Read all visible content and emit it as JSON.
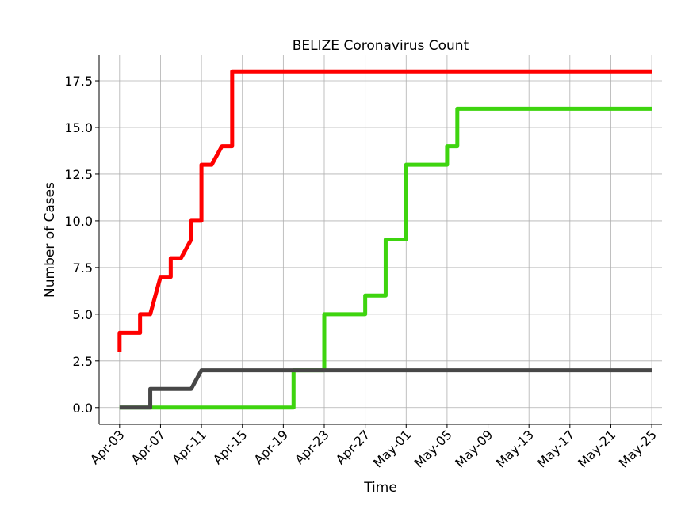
{
  "chart_data": {
    "type": "line",
    "title": "BELIZE Coronavirus Count",
    "xlabel": "Time",
    "ylabel": "Number of Cases",
    "x_range": [
      "2020-04-01",
      "2020-05-26"
    ],
    "ylim": [
      -0.9,
      18.9
    ],
    "x_ticks": [
      "2020-04-03",
      "2020-04-07",
      "2020-04-11",
      "2020-04-15",
      "2020-04-19",
      "2020-04-23",
      "2020-04-27",
      "2020-05-01",
      "2020-05-05",
      "2020-05-09",
      "2020-05-13",
      "2020-05-17",
      "2020-05-21",
      "2020-05-25"
    ],
    "x_tick_labels": [
      "Apr-03",
      "Apr-07",
      "Apr-11",
      "Apr-15",
      "Apr-19",
      "Apr-23",
      "Apr-27",
      "May-01",
      "May-05",
      "May-09",
      "May-13",
      "May-17",
      "May-21",
      "May-25"
    ],
    "y_ticks": [
      0,
      2.5,
      5,
      7.5,
      10,
      12.5,
      15,
      17.5
    ],
    "y_tick_labels": [
      "0.0",
      "2.5",
      "5.0",
      "7.5",
      "10.0",
      "12.5",
      "15.0",
      "17.5"
    ],
    "grid": true,
    "series": [
      {
        "color": "#ff0000",
        "points": [
          [
            "2020-04-03",
            3
          ],
          [
            "2020-04-03",
            4
          ],
          [
            "2020-04-05",
            4
          ],
          [
            "2020-04-05",
            5
          ],
          [
            "2020-04-06",
            5
          ],
          [
            "2020-04-07",
            7
          ],
          [
            "2020-04-08",
            7
          ],
          [
            "2020-04-08",
            8
          ],
          [
            "2020-04-09",
            8
          ],
          [
            "2020-04-10",
            9
          ],
          [
            "2020-04-10",
            10
          ],
          [
            "2020-04-11",
            10
          ],
          [
            "2020-04-11",
            13
          ],
          [
            "2020-04-12",
            13
          ],
          [
            "2020-04-13",
            14
          ],
          [
            "2020-04-14",
            14
          ],
          [
            "2020-04-14",
            18
          ],
          [
            "2020-05-25",
            18
          ]
        ]
      },
      {
        "color": "#3ed40f",
        "points": [
          [
            "2020-04-03",
            0
          ],
          [
            "2020-04-20",
            0
          ],
          [
            "2020-04-20",
            2
          ],
          [
            "2020-04-23",
            2
          ],
          [
            "2020-04-23",
            5
          ],
          [
            "2020-04-27",
            5
          ],
          [
            "2020-04-27",
            6
          ],
          [
            "2020-04-29",
            6
          ],
          [
            "2020-04-29",
            9
          ],
          [
            "2020-05-01",
            9
          ],
          [
            "2020-05-01",
            13
          ],
          [
            "2020-05-05",
            13
          ],
          [
            "2020-05-05",
            14
          ],
          [
            "2020-05-06",
            14
          ],
          [
            "2020-05-06",
            16
          ],
          [
            "2020-05-25",
            16
          ]
        ]
      },
      {
        "color": "#474747",
        "points": [
          [
            "2020-04-03",
            0
          ],
          [
            "2020-04-06",
            0
          ],
          [
            "2020-04-06",
            1
          ],
          [
            "2020-04-10",
            1
          ],
          [
            "2020-04-11",
            2
          ],
          [
            "2020-05-25",
            2
          ]
        ]
      }
    ]
  }
}
